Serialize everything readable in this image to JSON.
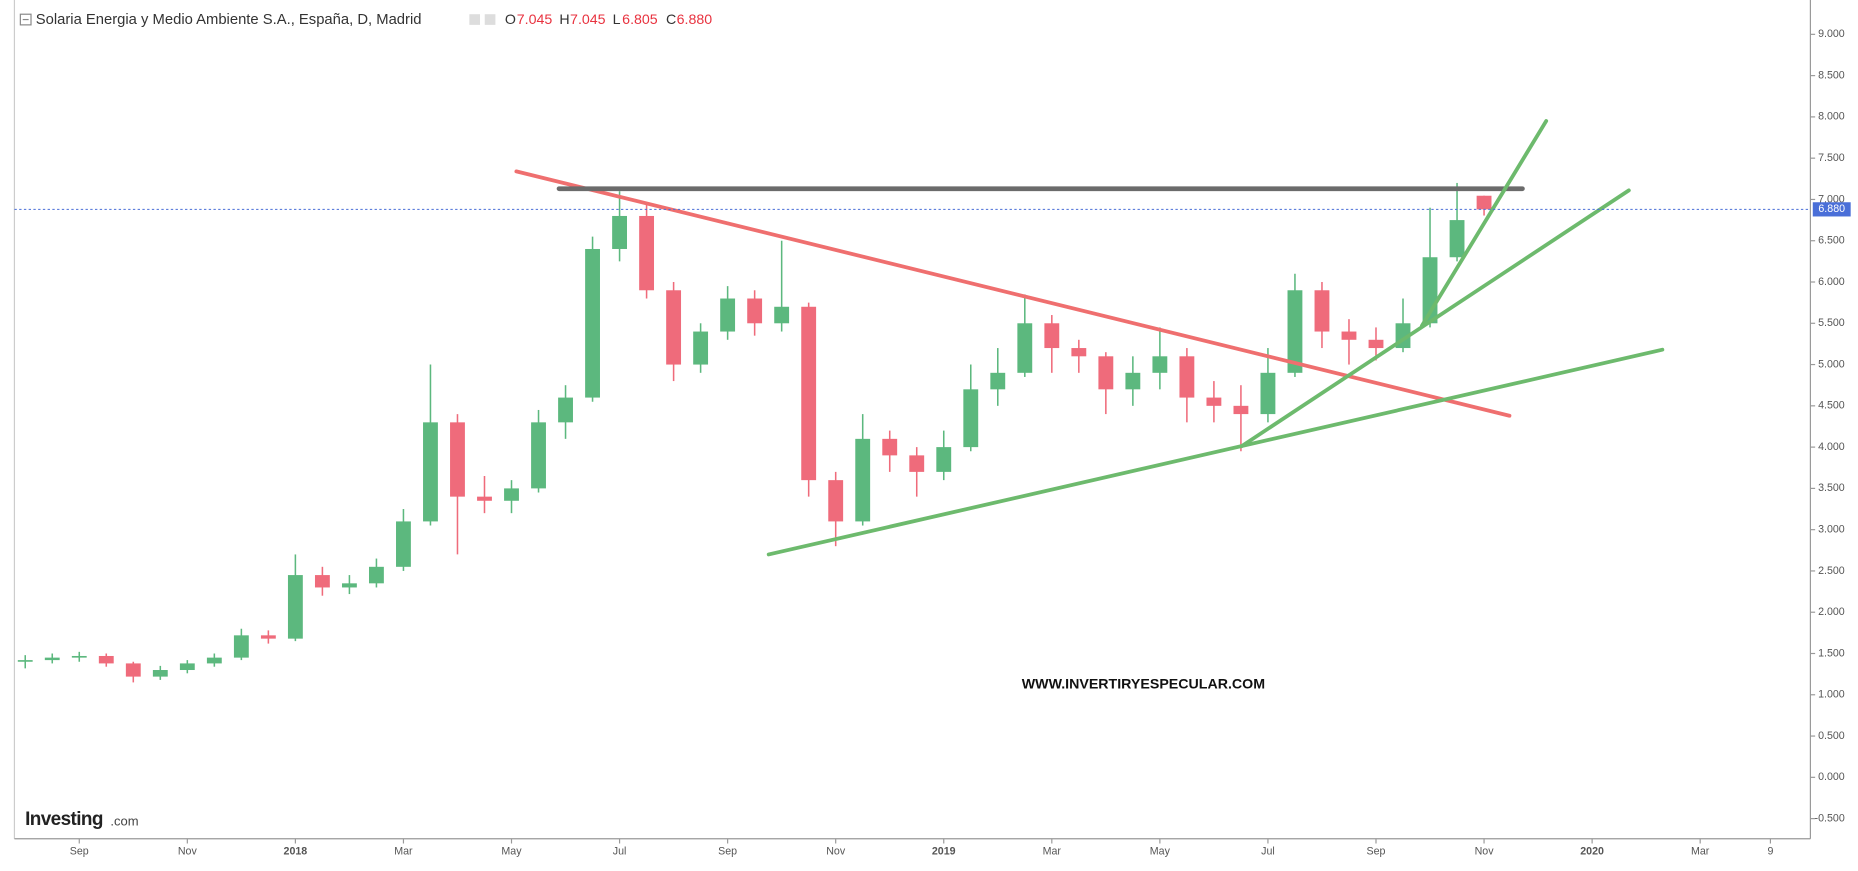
{
  "chart_data": {
    "type": "candlestick",
    "title": "Solaria Energia y Medio Ambiente S.A., España, D, Madrid",
    "ohlc_labels": [
      "O",
      "H",
      "L",
      "C"
    ],
    "last": [
      "7.045",
      "7.045",
      "6.805",
      "6.880"
    ],
    "watermark": "WWW.INVERTIRYESPECULAR.COM",
    "logo": [
      "Investing",
      ".com"
    ],
    "up_color": "#5cb87e",
    "down_color": "#ef6b7b",
    "price_line_color": "#4a6fd8",
    "x": [
      0,
      0.5,
      1,
      1.5,
      2,
      2.5,
      3,
      3.5,
      4,
      4.5,
      5,
      5.5,
      6,
      6.5,
      7,
      7.5,
      8,
      8.5,
      9,
      9.5,
      10,
      10.5,
      11,
      11.5,
      12,
      12.5,
      13,
      13.5,
      14,
      14.5,
      15,
      15.5,
      16,
      16.5,
      17,
      17.5,
      18,
      18.5,
      19,
      19.5,
      20,
      20.5,
      21,
      21.5,
      22,
      22.5,
      23,
      23.5,
      24,
      24.5,
      25,
      25.5,
      26,
      26.5,
      27
    ],
    "open": [
      1.4,
      1.42,
      1.45,
      1.47,
      1.38,
      1.22,
      1.3,
      1.38,
      1.45,
      1.72,
      1.68,
      2.45,
      2.3,
      2.35,
      2.55,
      3.1,
      4.3,
      3.4,
      3.35,
      3.5,
      4.3,
      4.6,
      6.4,
      6.8,
      5.9,
      5.0,
      5.4,
      5.8,
      5.5,
      5.7,
      3.6,
      3.1,
      4.1,
      3.9,
      3.7,
      4.0,
      4.7,
      4.9,
      5.5,
      5.2,
      5.1,
      4.7,
      4.9,
      5.1,
      4.6,
      4.5,
      4.4,
      4.9,
      5.9,
      5.4,
      5.3,
      5.2,
      5.5,
      6.3,
      7.045
    ],
    "high": [
      1.48,
      1.5,
      1.52,
      1.5,
      1.4,
      1.35,
      1.42,
      1.5,
      1.8,
      1.78,
      2.7,
      2.55,
      2.45,
      2.65,
      3.25,
      5.0,
      4.4,
      3.65,
      3.6,
      4.45,
      4.75,
      6.55,
      7.1,
      6.95,
      6.0,
      5.5,
      5.95,
      5.9,
      6.5,
      5.75,
      3.7,
      4.4,
      4.2,
      4.0,
      4.2,
      5.0,
      5.2,
      5.85,
      5.6,
      5.3,
      5.15,
      5.1,
      5.45,
      5.2,
      4.8,
      4.75,
      5.2,
      6.1,
      6.0,
      5.55,
      5.45,
      5.8,
      6.9,
      7.2,
      7.045
    ],
    "low": [
      1.32,
      1.38,
      1.4,
      1.34,
      1.15,
      1.18,
      1.26,
      1.34,
      1.42,
      1.62,
      1.65,
      2.2,
      2.22,
      2.3,
      2.5,
      3.05,
      2.7,
      3.2,
      3.2,
      3.45,
      4.1,
      4.55,
      6.25,
      5.8,
      4.8,
      4.9,
      5.3,
      5.35,
      5.4,
      3.4,
      2.8,
      3.05,
      3.7,
      3.4,
      3.6,
      3.95,
      4.5,
      4.85,
      4.9,
      4.9,
      4.4,
      4.5,
      4.7,
      4.3,
      4.3,
      3.95,
      4.3,
      4.85,
      5.2,
      5.0,
      5.05,
      5.15,
      5.45,
      6.25,
      6.805
    ],
    "close": [
      1.42,
      1.45,
      1.47,
      1.38,
      1.22,
      1.3,
      1.38,
      1.45,
      1.72,
      1.68,
      2.45,
      2.3,
      2.35,
      2.55,
      3.1,
      4.3,
      3.4,
      3.35,
      3.5,
      4.3,
      4.6,
      6.4,
      6.8,
      5.9,
      5.0,
      5.4,
      5.8,
      5.5,
      5.7,
      3.6,
      3.1,
      4.1,
      3.9,
      3.7,
      4.0,
      4.7,
      4.9,
      5.5,
      5.2,
      5.1,
      4.7,
      4.9,
      5.1,
      4.6,
      4.5,
      4.4,
      4.9,
      5.9,
      5.4,
      5.3,
      5.2,
      5.5,
      6.3,
      6.75,
      6.88
    ],
    "trendlines": [
      {
        "color": "#ef6f6f",
        "x": [
          9.09,
          27.47
        ],
        "y": [
          7.34,
          4.38
        ]
      },
      {
        "color": "#6b6b6b",
        "x": [
          9.88,
          27.71
        ],
        "y": [
          7.13,
          7.13
        ]
      },
      {
        "color": "#6dba6d",
        "x": [
          13.76,
          30.3
        ],
        "y": [
          2.7,
          5.18
        ]
      },
      {
        "color": "#6dba6d",
        "x": [
          22.51,
          29.68
        ],
        "y": [
          4.01,
          7.11
        ]
      },
      {
        "color": "#6dba6d",
        "x": [
          25.85,
          28.15
        ],
        "y": [
          5.47,
          7.95
        ]
      }
    ],
    "xlim": [
      -0.2,
      33.04
    ],
    "ylim": [
      -0.744,
      9.416
    ],
    "grid": false,
    "xticks": [
      {
        "value": 1,
        "label": "Sep"
      },
      {
        "value": 3,
        "label": "Nov"
      },
      {
        "value": 5,
        "label": "2018"
      },
      {
        "value": 7,
        "label": "Mar"
      },
      {
        "value": 9,
        "label": "May"
      },
      {
        "value": 11,
        "label": "Jul"
      },
      {
        "value": 13,
        "label": "Sep"
      },
      {
        "value": 15,
        "label": "Nov"
      },
      {
        "value": 17,
        "label": "2019"
      },
      {
        "value": 19,
        "label": "Mar"
      },
      {
        "value": 21,
        "label": "May"
      },
      {
        "value": 23,
        "label": "Jul"
      },
      {
        "value": 25,
        "label": "Sep"
      },
      {
        "value": 27,
        "label": "Nov"
      },
      {
        "value": 29,
        "label": "2020"
      },
      {
        "value": 31,
        "label": "Mar"
      },
      {
        "value": 32.3,
        "label": "9"
      }
    ],
    "yticks": [
      {
        "value": 9,
        "label": "9.000"
      },
      {
        "value": 8.5,
        "label": "8.500"
      },
      {
        "value": 8,
        "label": "8.000"
      },
      {
        "value": 7.5,
        "label": "7.500"
      },
      {
        "value": 7,
        "label": "7.000"
      },
      {
        "value": 6.5,
        "label": "6.500"
      },
      {
        "value": 6,
        "label": "6.000"
      },
      {
        "value": 5.5,
        "label": "5.500"
      },
      {
        "value": 5,
        "label": "5.000"
      },
      {
        "value": 4.5,
        "label": "4.500"
      },
      {
        "value": 4,
        "label": "4.000"
      },
      {
        "value": 3.5,
        "label": "3.500"
      },
      {
        "value": 3,
        "label": "3.000"
      },
      {
        "value": 2.5,
        "label": "2.500"
      },
      {
        "value": 2,
        "label": "2.000"
      },
      {
        "value": 1.5,
        "label": "1.500"
      },
      {
        "value": 1,
        "label": "1.000"
      },
      {
        "value": 0.5,
        "label": "0.500"
      },
      {
        "value": 0,
        "label": "0.000"
      },
      {
        "value": -0.5,
        "label": "-0.500"
      }
    ]
  }
}
